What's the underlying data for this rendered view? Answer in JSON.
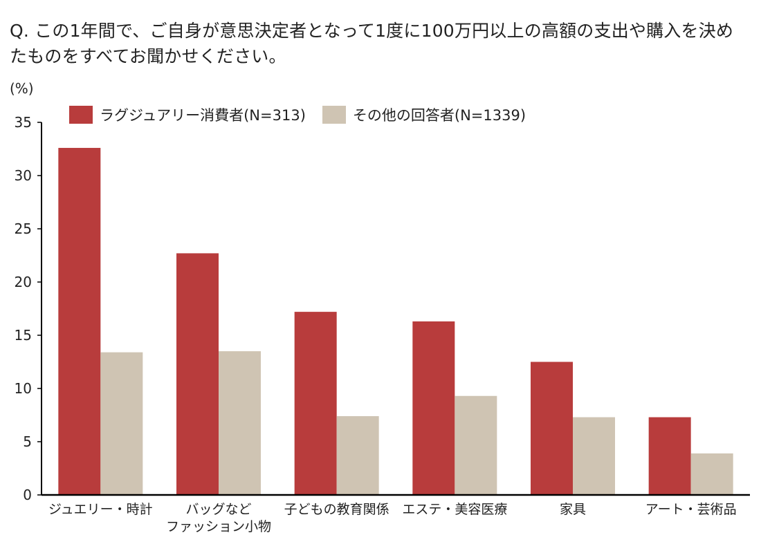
{
  "title": "Q. この1年間で、ご自身が意思決定者となって1度に100万円以上の高額の支出や購入を決めたものをすべてお聞かせください。",
  "unit_label": "(%)",
  "colors": {
    "luxury": "#b83c3c",
    "other": "#cfc4b3"
  },
  "legend": [
    {
      "name": "ラグジュアリー消費者(N=313)",
      "color": "#b83c3c"
    },
    {
      "name": "その他の回答者(N=1339)",
      "color": "#cfc4b3"
    }
  ],
  "chart_data": {
    "type": "bar",
    "title": "Q. この1年間で、ご自身が意思決定者となって1度に100万円以上の高額の支出や購入を決めたものをすべてお聞かせください。",
    "ylabel": "(%)",
    "xlabel": "",
    "ylim": [
      0,
      35
    ],
    "yticks": [
      "0",
      "5",
      "10",
      "15",
      "20",
      "25",
      "30",
      "35"
    ],
    "categories": [
      [
        "ジュエリー・時計"
      ],
      [
        "バッグなど",
        "ファッション小物"
      ],
      [
        "子どもの教育関係"
      ],
      [
        "エステ・美容医療"
      ],
      [
        "家具"
      ],
      [
        "アート・芸術品"
      ]
    ],
    "series": [
      {
        "name": "ラグジュアリー消費者(N=313)",
        "color": "#b83c3c",
        "values": [
          32.6,
          22.7,
          17.2,
          16.3,
          12.5,
          7.3
        ]
      },
      {
        "name": "その他の回答者(N=1339)",
        "color": "#cfc4b3",
        "values": [
          13.4,
          13.5,
          7.4,
          9.3,
          7.3,
          3.9
        ]
      }
    ],
    "legend_position": "top-left",
    "grid": false
  }
}
